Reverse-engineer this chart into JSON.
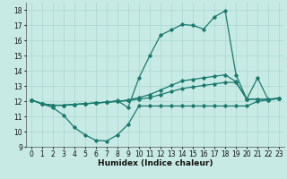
{
  "xlabel": "Humidex (Indice chaleur)",
  "xlim": [
    -0.5,
    23.5
  ],
  "ylim": [
    9,
    18.5
  ],
  "yticks": [
    9,
    10,
    11,
    12,
    13,
    14,
    15,
    16,
    17,
    18
  ],
  "xticks": [
    0,
    1,
    2,
    3,
    4,
    5,
    6,
    7,
    8,
    9,
    10,
    11,
    12,
    13,
    14,
    15,
    16,
    17,
    18,
    19,
    20,
    21,
    22,
    23
  ],
  "bg_color": "#c8eae4",
  "grid_color": "#a0d4cc",
  "line_color": "#1a7a6e",
  "line1_x": [
    0,
    1,
    2,
    3,
    4,
    5,
    6,
    7,
    8,
    9,
    10,
    11,
    12,
    13,
    14,
    15,
    16,
    17,
    18,
    19,
    20,
    21,
    22,
    23
  ],
  "line1_y": [
    12.1,
    11.85,
    11.6,
    11.1,
    10.3,
    9.8,
    9.45,
    9.4,
    9.8,
    10.5,
    11.7,
    11.7,
    11.7,
    11.7,
    11.7,
    11.7,
    11.7,
    11.7,
    11.7,
    11.7,
    11.7,
    12.0,
    12.1,
    12.2
  ],
  "line2_x": [
    0,
    1,
    2,
    3,
    4,
    5,
    6,
    7,
    8,
    9,
    10,
    11,
    12,
    13,
    14,
    15,
    16,
    17,
    18,
    19,
    20,
    21,
    22,
    23
  ],
  "line2_y": [
    12.1,
    11.85,
    11.75,
    11.75,
    11.8,
    11.85,
    11.9,
    11.95,
    12.0,
    12.05,
    12.15,
    12.25,
    12.45,
    12.65,
    12.85,
    12.95,
    13.05,
    13.15,
    13.25,
    13.25,
    12.15,
    12.15,
    12.15,
    12.2
  ],
  "line3_x": [
    0,
    1,
    2,
    3,
    4,
    5,
    6,
    7,
    8,
    9,
    10,
    11,
    12,
    13,
    14,
    15,
    16,
    17,
    18,
    19,
    20,
    21,
    22,
    23
  ],
  "line3_y": [
    12.1,
    11.85,
    11.75,
    11.75,
    11.8,
    11.85,
    11.9,
    11.95,
    12.0,
    12.1,
    12.25,
    12.45,
    12.75,
    13.05,
    13.35,
    13.45,
    13.55,
    13.65,
    13.75,
    13.3,
    12.15,
    12.15,
    12.15,
    12.2
  ],
  "line4_x": [
    0,
    1,
    2,
    3,
    4,
    5,
    6,
    7,
    8,
    9,
    10,
    11,
    12,
    13,
    14,
    15,
    16,
    17,
    18,
    19,
    20,
    21,
    22,
    23
  ],
  "line4_y": [
    12.1,
    11.85,
    11.75,
    11.75,
    11.8,
    11.85,
    11.9,
    11.95,
    12.05,
    11.6,
    13.55,
    15.0,
    16.35,
    16.7,
    17.05,
    17.0,
    16.75,
    17.55,
    17.95,
    13.75,
    12.15,
    13.55,
    12.1,
    12.2
  ],
  "line_width": 0.9,
  "label_fontsize": 6.5,
  "tick_fontsize": 5.5
}
